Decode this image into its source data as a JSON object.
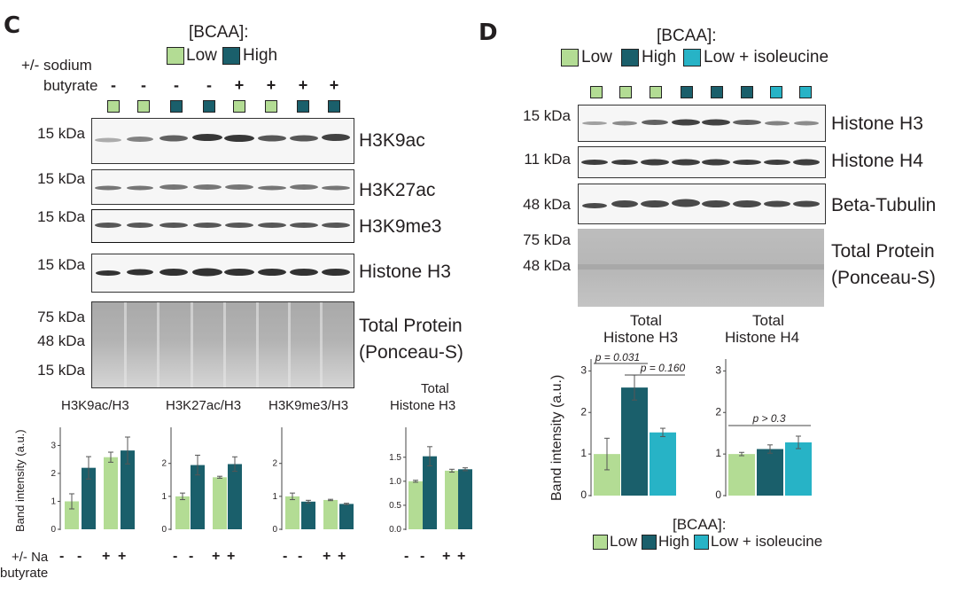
{
  "colors": {
    "low": "#b3dc94",
    "high": "#1a5f6b",
    "iso": "#27b3c6",
    "ink": "#231f20"
  },
  "panelC": {
    "letter": "C",
    "legend_title": "[BCAA]:",
    "legend_low": "Low",
    "legend_high": "High",
    "butyrate_label_1": "+/- sodium",
    "butyrate_label_2": "butyrate",
    "signs": [
      "-",
      "-",
      "-",
      "-",
      "+",
      "+",
      "+",
      "+"
    ],
    "lane_groups": [
      "low",
      "low",
      "high",
      "high",
      "low",
      "low",
      "high",
      "high"
    ],
    "blots": [
      {
        "marker": "15 kDa",
        "name": "H3K9ac"
      },
      {
        "marker": "15 kDa",
        "name": "H3K27ac"
      },
      {
        "marker": "15 kDa",
        "name": "H3K9me3"
      },
      {
        "marker": "15 kDa",
        "name": "Histone H3"
      }
    ],
    "total_protein": {
      "markers": [
        "75 kDa",
        "48 kDa",
        "15 kDa"
      ],
      "name_1": "Total Protein",
      "name_2": "(Ponceau-S)"
    },
    "ylabel": "Band intensity (a.u.)",
    "bottom_label_1": "+/- Na",
    "bottom_label_2": "butyrate",
    "bottom_signs": [
      "-",
      "-",
      "+",
      "+"
    ]
  },
  "panelD": {
    "letter": "D",
    "legend_title": "[BCAA]:",
    "legend_low": "Low",
    "legend_high": "High",
    "legend_iso": "Low + isoleucine",
    "lane_groups": [
      "low",
      "low",
      "low",
      "high",
      "high",
      "high",
      "iso",
      "iso"
    ],
    "blots": [
      {
        "marker": "15 kDa",
        "name": "Histone H3"
      },
      {
        "marker": "11 kDa",
        "name": "Histone H4"
      },
      {
        "marker": "48 kDa",
        "name": "Beta-Tubulin"
      }
    ],
    "total_protein": {
      "markers": [
        "75 kDa",
        "48 kDa"
      ],
      "name_1": "Total Protein",
      "name_2": "(Ponceau-S)"
    },
    "ylabel": "Band intensity (a.u.)",
    "bottom_legend_title": "[BCAA]:",
    "bottom_legend_low": "Low",
    "bottom_legend_high": "High",
    "bottom_legend_iso": "Low + isoleucine"
  },
  "chart_data": [
    {
      "type": "bar",
      "panel": "C",
      "title": "H3K9ac/H3",
      "ylabel": "Band intensity (a.u.)",
      "ylim": [
        0,
        3.3
      ],
      "yticks": [
        "0",
        "1",
        "2",
        "3"
      ],
      "categories": [
        "Low -",
        "High -",
        "Low +",
        "High +"
      ],
      "values": [
        1.0,
        2.2,
        2.58,
        2.82
      ],
      "errors": [
        0.27,
        0.4,
        0.18,
        0.48
      ],
      "groups": [
        "low",
        "high",
        "low",
        "high"
      ]
    },
    {
      "type": "bar",
      "panel": "C",
      "title": "H3K27ac/H3",
      "ylim": [
        0,
        2.8
      ],
      "yticks": [
        "0",
        "1",
        "2"
      ],
      "categories": [
        "Low -",
        "High -",
        "Low +",
        "High +"
      ],
      "values": [
        1.0,
        1.95,
        1.58,
        1.98
      ],
      "errors": [
        0.1,
        0.3,
        0.03,
        0.22
      ],
      "groups": [
        "low",
        "high",
        "low",
        "high"
      ]
    },
    {
      "type": "bar",
      "panel": "C",
      "title": "H3K9me3/H3",
      "ylim": [
        0,
        2.8
      ],
      "yticks": [
        "0",
        "1",
        "2"
      ],
      "categories": [
        "Low -",
        "High -",
        "Low +",
        "High +"
      ],
      "values": [
        1.0,
        0.84,
        0.89,
        0.77
      ],
      "errors": [
        0.1,
        0.04,
        0.02,
        0.02
      ],
      "groups": [
        "low",
        "high",
        "low",
        "high"
      ]
    },
    {
      "type": "bar",
      "panel": "C",
      "title_1": "Total",
      "title_2": "Histone H3",
      "ylim": [
        0,
        1.92
      ],
      "yticks": [
        "0.0",
        "0.5",
        "1.0",
        "1.5"
      ],
      "categories": [
        "Low -",
        "High -",
        "Low +",
        "High +"
      ],
      "values": [
        1.0,
        1.52,
        1.22,
        1.25
      ],
      "errors": [
        0.02,
        0.2,
        0.03,
        0.03
      ],
      "groups": [
        "low",
        "high",
        "low",
        "high"
      ]
    },
    {
      "type": "bar",
      "panel": "D",
      "title_1": "Total",
      "title_2": "Histone H3",
      "ylim": [
        0,
        3.2
      ],
      "yticks": [
        "0",
        "1",
        "2",
        "3"
      ],
      "categories": [
        "Low",
        "High",
        "Low + isoleucine"
      ],
      "values": [
        1.0,
        2.6,
        1.52
      ],
      "errors": [
        0.38,
        0.3,
        0.1
      ],
      "groups": [
        "low",
        "high",
        "iso"
      ],
      "annotations": [
        "p = 0.031",
        "p = 0.160"
      ]
    },
    {
      "type": "bar",
      "panel": "D",
      "title_1": "Total",
      "title_2": "Histone H4",
      "ylim": [
        0,
        3.2
      ],
      "yticks": [
        "0",
        "1",
        "2",
        "3"
      ],
      "categories": [
        "Low",
        "High",
        "Low + isoleucine"
      ],
      "values": [
        1.0,
        1.12,
        1.28
      ],
      "errors": [
        0.04,
        0.1,
        0.15
      ],
      "groups": [
        "low",
        "high",
        "iso"
      ],
      "annotations": [
        "p > 0.3"
      ]
    }
  ]
}
